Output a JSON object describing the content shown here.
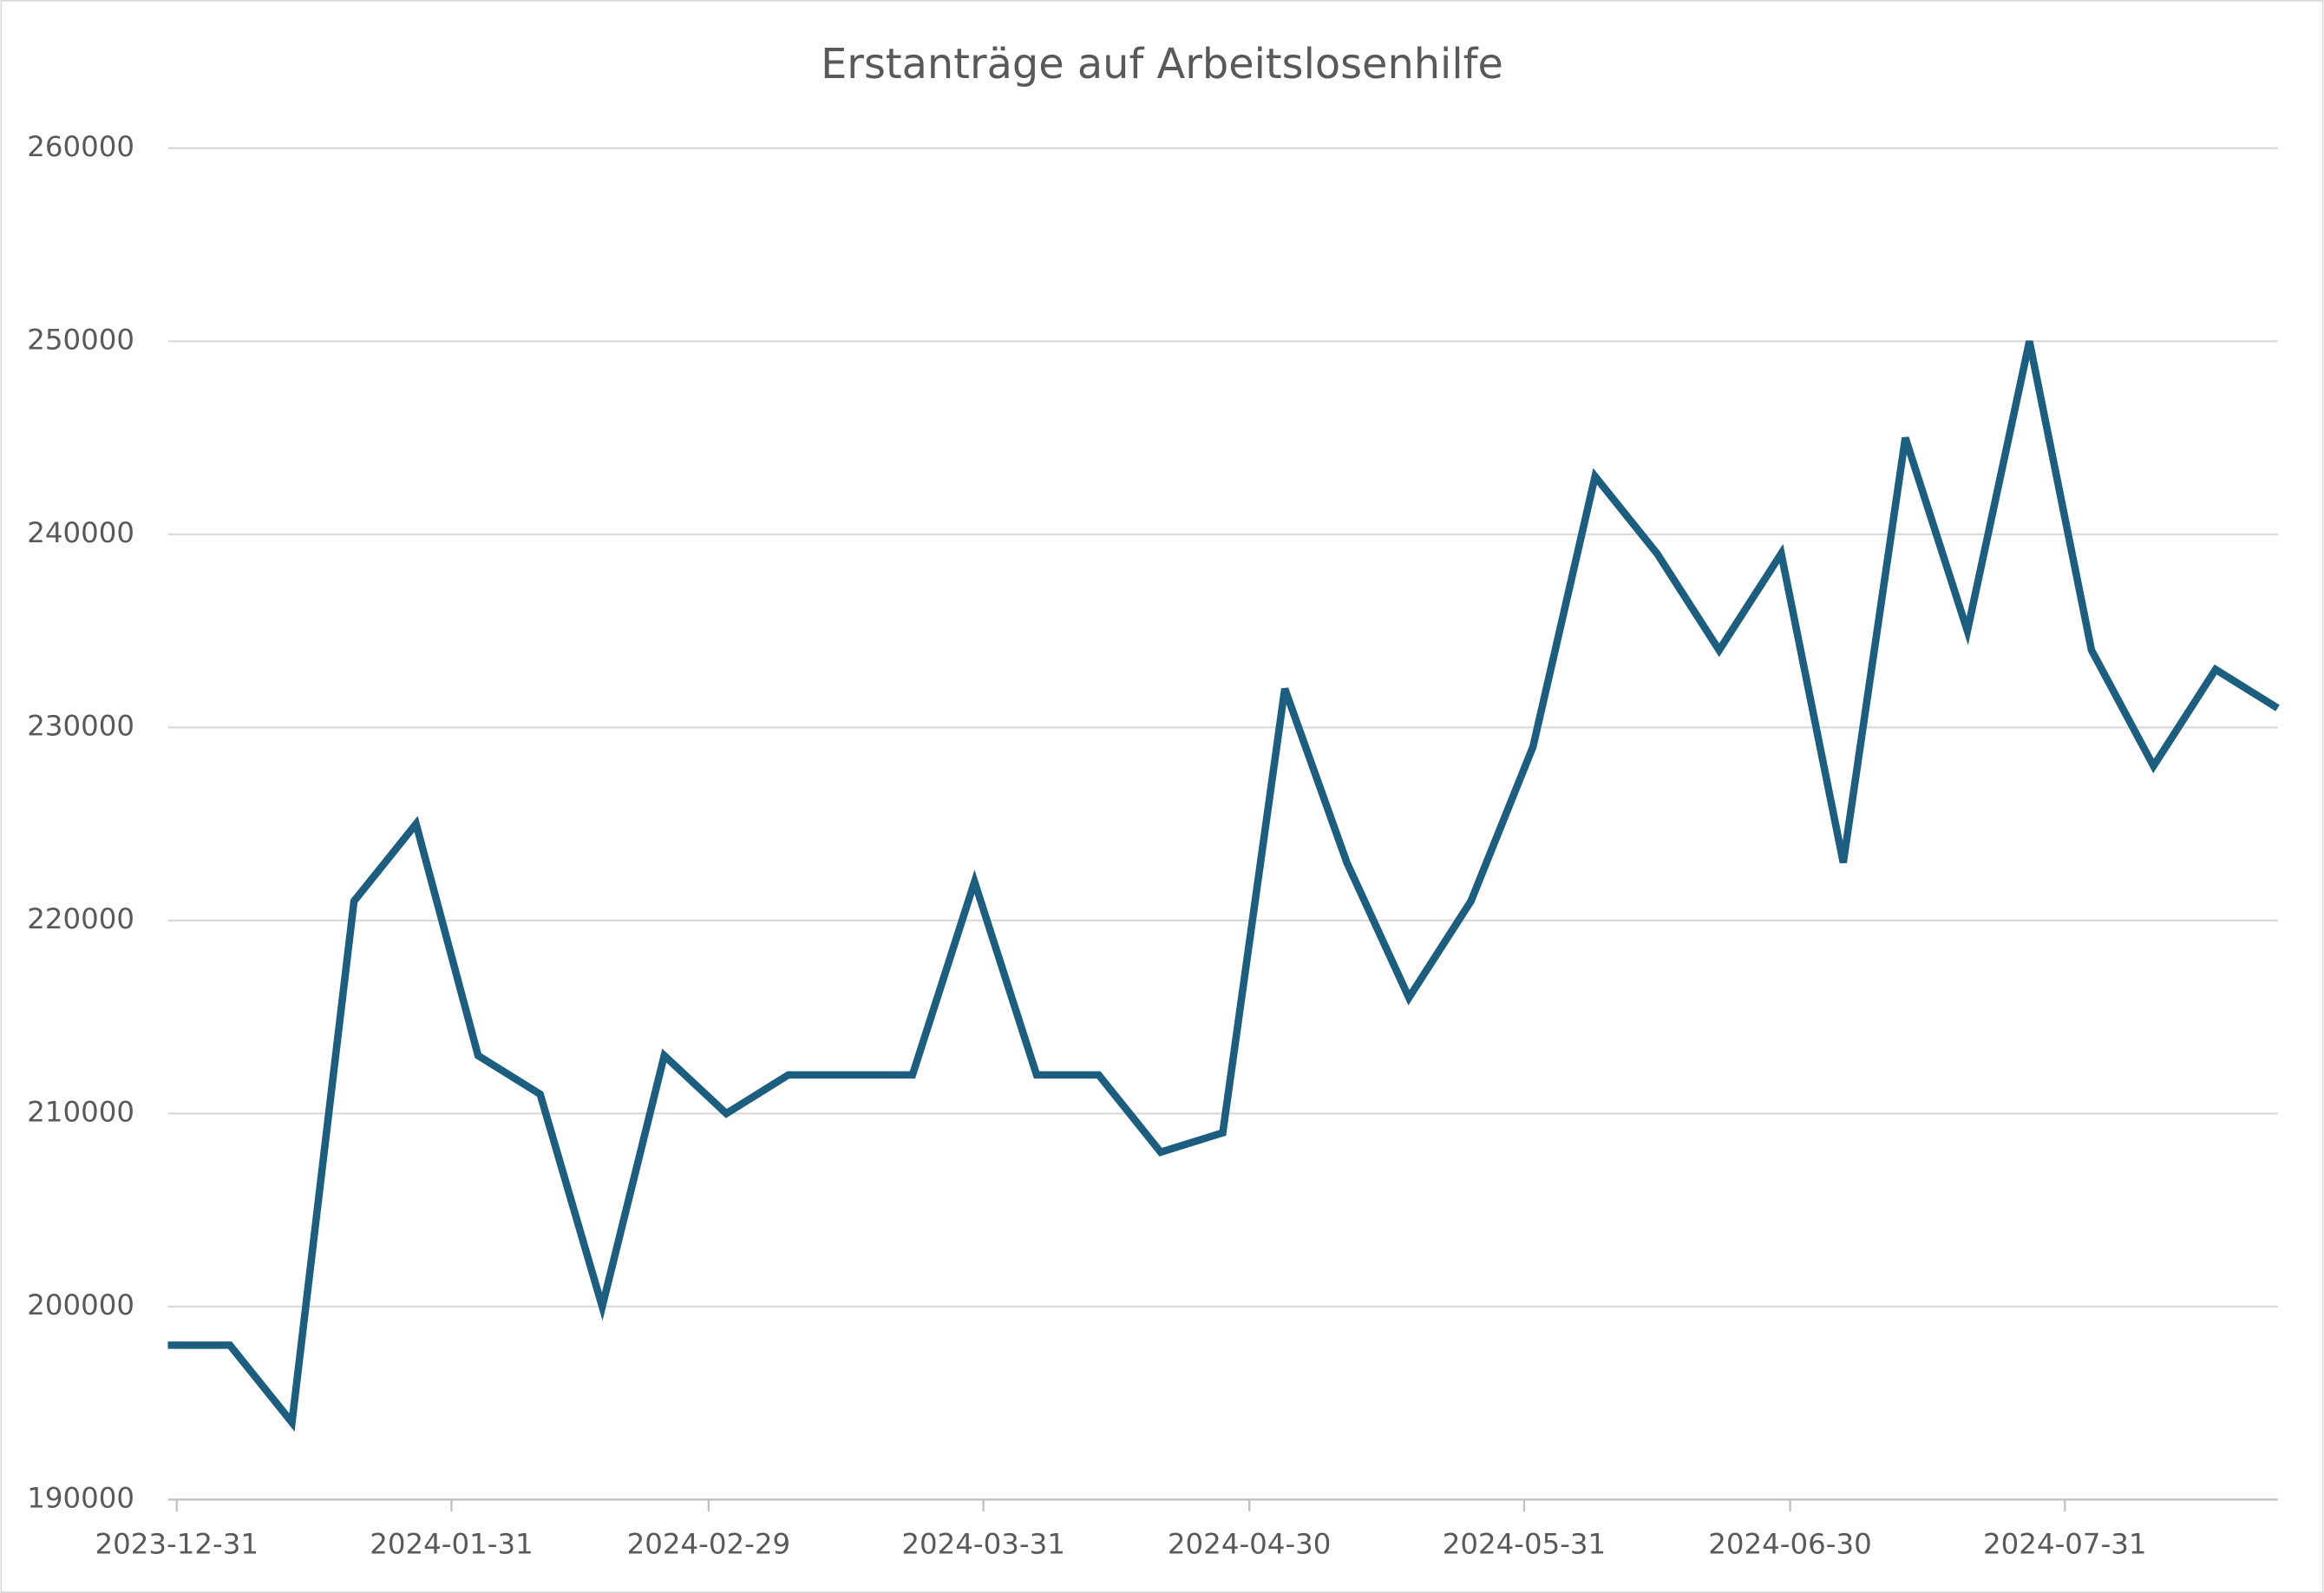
{
  "chart_data": {
    "type": "line",
    "title": "Erstanträge auf Arbeitslosenhilfe",
    "x": [
      "2023-12-30",
      "2024-01-06",
      "2024-01-13",
      "2024-01-20",
      "2024-01-27",
      "2024-02-03",
      "2024-02-10",
      "2024-02-17",
      "2024-02-24",
      "2024-03-02",
      "2024-03-09",
      "2024-03-16",
      "2024-03-23",
      "2024-03-30",
      "2024-04-06",
      "2024-04-13",
      "2024-04-20",
      "2024-04-27",
      "2024-05-04",
      "2024-05-11",
      "2024-05-18",
      "2024-05-25",
      "2024-06-01",
      "2024-06-08",
      "2024-06-15",
      "2024-06-22",
      "2024-06-29",
      "2024-07-06",
      "2024-07-13",
      "2024-07-20",
      "2024-07-27",
      "2024-08-03",
      "2024-08-10",
      "2024-08-17",
      "2024-08-24"
    ],
    "series": [
      {
        "name": "Erstanträge",
        "color": "#1b5e80",
        "values": [
          198000,
          198000,
          194000,
          221000,
          225000,
          213000,
          211000,
          200000,
          213000,
          210000,
          212000,
          212000,
          212000,
          222000,
          212000,
          212000,
          208000,
          209000,
          232000,
          223000,
          216000,
          221000,
          229000,
          243000,
          239000,
          234000,
          239000,
          223000,
          245000,
          235000,
          250000,
          234000,
          228000,
          233000,
          231000
        ]
      }
    ],
    "xlim": [
      "2023-12-30",
      "2024-08-24"
    ],
    "xticks": [
      "2023-12-31",
      "2024-01-31",
      "2024-02-29",
      "2024-03-31",
      "2024-04-30",
      "2024-05-31",
      "2024-06-30",
      "2024-07-31"
    ],
    "ylim": [
      190000,
      260000
    ],
    "yticks": [
      190000,
      200000,
      210000,
      220000,
      230000,
      240000,
      250000,
      260000
    ],
    "grid": true
  }
}
